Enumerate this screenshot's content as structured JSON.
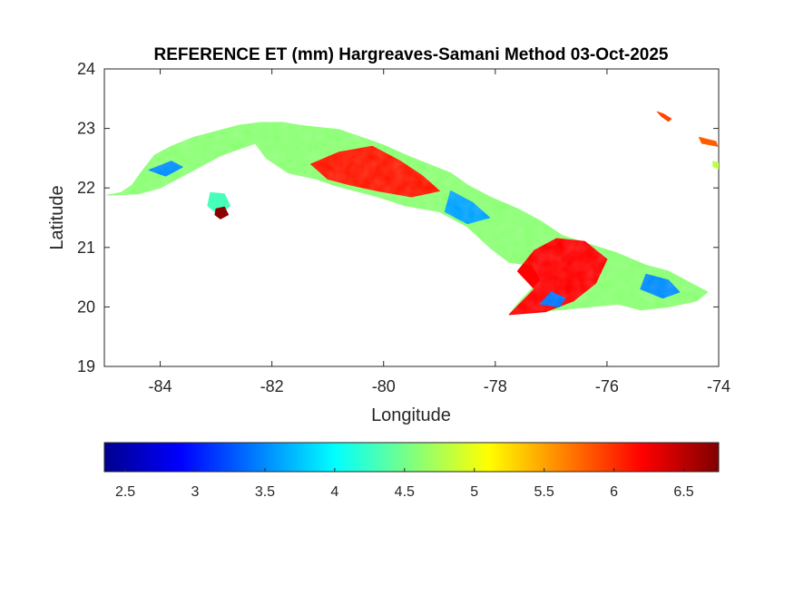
{
  "chart_data": {
    "type": "heatmap",
    "title": "REFERENCE ET (mm) Hargreaves-Samani Method  03-Oct-2025",
    "xlabel": "Longitude",
    "ylabel": "Latitude",
    "xlim": [
      -85,
      -74
    ],
    "ylim": [
      19,
      24
    ],
    "x_ticks": [
      {
        "value": -84,
        "label": "-84"
      },
      {
        "value": -82,
        "label": "-82"
      },
      {
        "value": -80,
        "label": "-80"
      },
      {
        "value": -78,
        "label": "-78"
      },
      {
        "value": -76,
        "label": "-76"
      },
      {
        "value": -74,
        "label": "-74"
      }
    ],
    "y_ticks": [
      {
        "value": 19,
        "label": "19"
      },
      {
        "value": 20,
        "label": "20"
      },
      {
        "value": 21,
        "label": "21"
      },
      {
        "value": 22,
        "label": "22"
      },
      {
        "value": 23,
        "label": "23"
      },
      {
        "value": 24,
        "label": "24"
      }
    ],
    "colorbar": {
      "colormap": "jet",
      "orientation": "horizontal",
      "placement": "below",
      "range": [
        2.35,
        6.75
      ],
      "ticks": [
        {
          "value": 2.5,
          "label": "2.5"
        },
        {
          "value": 3,
          "label": "3"
        },
        {
          "value": 3.5,
          "label": "3.5"
        },
        {
          "value": 4,
          "label": "4"
        },
        {
          "value": 4.5,
          "label": "4.5"
        },
        {
          "value": 5,
          "label": "5"
        },
        {
          "value": 5.5,
          "label": "5.5"
        },
        {
          "value": 6,
          "label": "6"
        },
        {
          "value": 6.5,
          "label": "6.5"
        }
      ]
    },
    "grid": false,
    "regions": [
      {
        "name": "",
        "value": 4.6,
        "outline": [
          [
            -84.95,
            21.88
          ],
          [
            -84.7,
            21.92
          ],
          [
            -84.5,
            22.05
          ],
          [
            -84.35,
            22.25
          ],
          [
            -84.1,
            22.55
          ],
          [
            -83.8,
            22.7
          ],
          [
            -83.4,
            22.85
          ],
          [
            -83.0,
            22.95
          ],
          [
            -82.6,
            23.05
          ],
          [
            -82.2,
            23.1
          ],
          [
            -81.8,
            23.1
          ],
          [
            -81.5,
            23.05
          ],
          [
            -81.2,
            23.02
          ],
          [
            -80.8,
            22.98
          ],
          [
            -80.4,
            22.85
          ],
          [
            -80.0,
            22.72
          ],
          [
            -79.6,
            22.55
          ],
          [
            -79.2,
            22.4
          ],
          [
            -78.8,
            22.25
          ],
          [
            -78.5,
            22.05
          ],
          [
            -78.1,
            21.85
          ],
          [
            -77.6,
            21.65
          ],
          [
            -77.2,
            21.45
          ],
          [
            -76.8,
            21.2
          ],
          [
            -76.3,
            21.05
          ],
          [
            -75.8,
            20.9
          ],
          [
            -75.3,
            20.7
          ],
          [
            -74.9,
            20.6
          ],
          [
            -74.5,
            20.4
          ],
          [
            -74.2,
            20.25
          ],
          [
            -74.4,
            20.1
          ],
          [
            -74.9,
            20.0
          ],
          [
            -75.4,
            19.95
          ],
          [
            -75.8,
            20.05
          ],
          [
            -76.3,
            20.0
          ],
          [
            -76.9,
            19.95
          ],
          [
            -77.3,
            19.92
          ],
          [
            -77.75,
            19.87
          ],
          [
            -77.6,
            20.05
          ],
          [
            -77.2,
            20.45
          ],
          [
            -77.35,
            20.7
          ],
          [
            -77.75,
            20.75
          ],
          [
            -78.1,
            21.0
          ],
          [
            -78.5,
            21.35
          ],
          [
            -79.0,
            21.6
          ],
          [
            -79.6,
            21.7
          ],
          [
            -80.1,
            21.85
          ],
          [
            -80.5,
            21.95
          ],
          [
            -80.9,
            22.05
          ],
          [
            -81.2,
            22.15
          ],
          [
            -81.7,
            22.25
          ],
          [
            -82.1,
            22.5
          ],
          [
            -82.3,
            22.75
          ],
          [
            -82.9,
            22.55
          ],
          [
            -83.5,
            22.25
          ],
          [
            -84.0,
            22.0
          ],
          [
            -84.4,
            21.9
          ],
          [
            -84.95,
            21.88
          ]
        ]
      },
      {
        "name": "",
        "value": 6.1,
        "outline": [
          [
            -81.3,
            22.4
          ],
          [
            -80.8,
            22.6
          ],
          [
            -80.2,
            22.7
          ],
          [
            -79.7,
            22.45
          ],
          [
            -79.3,
            22.2
          ],
          [
            -79.0,
            21.95
          ],
          [
            -79.5,
            21.85
          ],
          [
            -80.1,
            21.95
          ],
          [
            -80.6,
            22.05
          ],
          [
            -81.0,
            22.15
          ],
          [
            -81.3,
            22.4
          ]
        ]
      },
      {
        "name": "",
        "value": 6.2,
        "outline": [
          [
            -77.75,
            19.87
          ],
          [
            -77.1,
            19.92
          ],
          [
            -76.6,
            20.1
          ],
          [
            -76.2,
            20.4
          ],
          [
            -76.0,
            20.8
          ],
          [
            -76.4,
            21.1
          ],
          [
            -76.9,
            21.15
          ],
          [
            -77.3,
            20.95
          ],
          [
            -77.6,
            20.6
          ],
          [
            -77.3,
            20.3
          ],
          [
            -77.75,
            19.87
          ]
        ]
      },
      {
        "name": "",
        "value": 3.4,
        "outline": [
          [
            -77.2,
            20.05
          ],
          [
            -76.85,
            20.0
          ],
          [
            -76.75,
            20.15
          ],
          [
            -77.0,
            20.25
          ],
          [
            -77.2,
            20.05
          ]
        ]
      },
      {
        "name": "",
        "value": 3.5,
        "outline": [
          [
            -84.2,
            22.3
          ],
          [
            -83.8,
            22.45
          ],
          [
            -83.6,
            22.35
          ],
          [
            -83.9,
            22.2
          ],
          [
            -84.2,
            22.3
          ]
        ]
      },
      {
        "name": "",
        "value": 3.6,
        "outline": [
          [
            -78.8,
            21.95
          ],
          [
            -78.4,
            21.75
          ],
          [
            -78.1,
            21.5
          ],
          [
            -78.5,
            21.4
          ],
          [
            -78.9,
            21.6
          ],
          [
            -78.8,
            21.95
          ]
        ]
      },
      {
        "name": "",
        "value": 3.5,
        "outline": [
          [
            -75.3,
            20.55
          ],
          [
            -74.9,
            20.45
          ],
          [
            -74.7,
            20.25
          ],
          [
            -75.0,
            20.15
          ],
          [
            -75.4,
            20.3
          ],
          [
            -75.3,
            20.55
          ]
        ]
      },
      {
        "name": "",
        "value": 4.3,
        "outline": [
          [
            -83.1,
            21.92
          ],
          [
            -82.85,
            21.9
          ],
          [
            -82.75,
            21.7
          ],
          [
            -82.95,
            21.55
          ],
          [
            -83.15,
            21.7
          ],
          [
            -83.1,
            21.92
          ]
        ]
      },
      {
        "name": "",
        "value": 6.7,
        "outline": [
          [
            -83.0,
            21.65
          ],
          [
            -82.85,
            21.68
          ],
          [
            -82.78,
            21.55
          ],
          [
            -82.92,
            21.48
          ],
          [
            -83.02,
            21.55
          ],
          [
            -83.0,
            21.65
          ]
        ]
      },
      {
        "name": "",
        "value": 5.9,
        "outline": [
          [
            -75.1,
            23.28
          ],
          [
            -75.02,
            23.2
          ],
          [
            -74.9,
            23.12
          ],
          [
            -74.85,
            23.16
          ],
          [
            -74.98,
            23.24
          ],
          [
            -75.1,
            23.28
          ]
        ]
      },
      {
        "name": "",
        "value": 5.8,
        "outline": [
          [
            -74.35,
            22.85
          ],
          [
            -74.05,
            22.78
          ],
          [
            -74.02,
            22.7
          ],
          [
            -74.3,
            22.75
          ],
          [
            -74.35,
            22.85
          ]
        ]
      },
      {
        "name": "",
        "value": 4.8,
        "outline": [
          [
            -74.1,
            22.45
          ],
          [
            -74.0,
            22.42
          ],
          [
            -74.0,
            22.32
          ],
          [
            -74.1,
            22.36
          ],
          [
            -74.1,
            22.45
          ]
        ]
      }
    ]
  }
}
